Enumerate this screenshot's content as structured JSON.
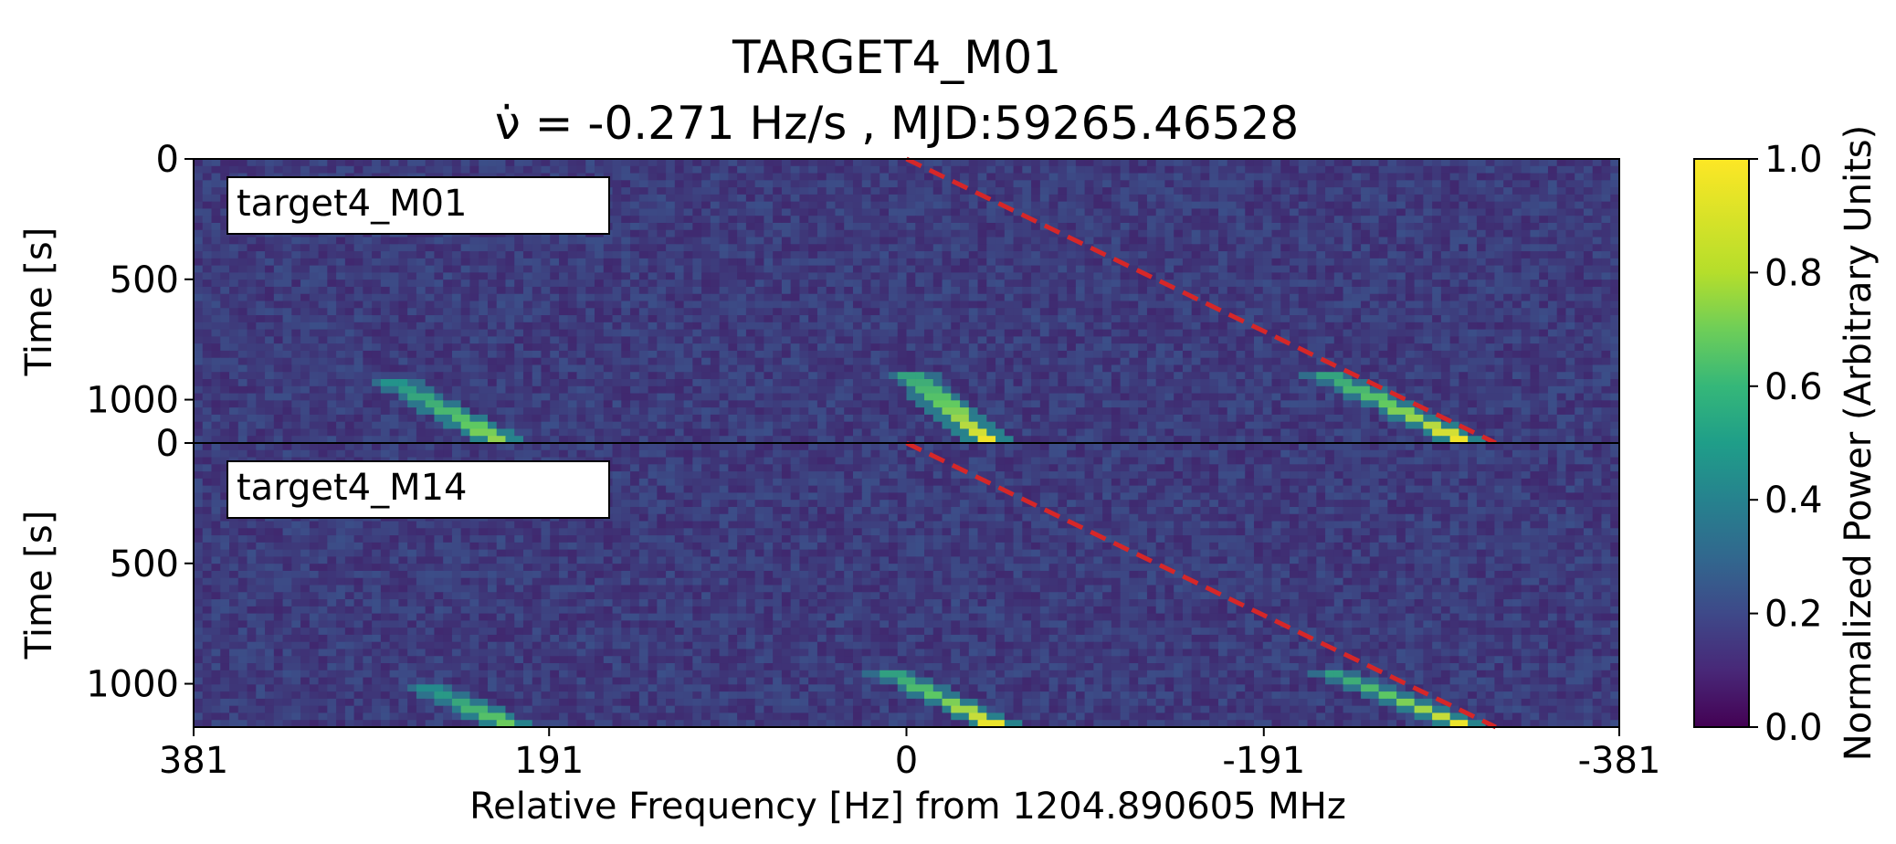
{
  "chart_data": {
    "type": "heatmap",
    "title": "TARGET4_M01",
    "subtitle": "ν̇ = -0.271 Hz/s , MJD:59265.46528",
    "xlabel": "Relative Frequency [Hz] from 1204.890605 MHz",
    "x_ticks": [
      "381",
      "191",
      "0",
      "-191",
      "-381"
    ],
    "x_tick_values": [
      381,
      191,
      0,
      -191,
      -381
    ],
    "xlim": [
      381,
      -381
    ],
    "colorbar": {
      "label": "Normalized Power (Arbitrary Units)",
      "ticks": [
        "0.0",
        "0.2",
        "0.4",
        "0.6",
        "0.8",
        "1.0"
      ],
      "range": [
        0.0,
        1.0
      ],
      "colormap": "viridis"
    },
    "drift_rate_hz_per_s": -0.271,
    "panels": [
      {
        "name": "target4_M01",
        "ylabel": "Time [s]",
        "y_ticks": [
          "0",
          "500",
          "1000"
        ],
        "y_tick_values": [
          0,
          500,
          1000
        ],
        "ylim": [
          0,
          1180
        ],
        "drift_line": {
          "x_start": 0,
          "x_end": -315,
          "t_start": 0,
          "t_end": 1180
        },
        "signals": [
          {
            "x_start": 0,
            "x_end": -45,
            "t_start": 880,
            "t_end": 1180,
            "peak": 1.0
          },
          {
            "x_start": -220,
            "x_end": -300,
            "t_start": 880,
            "t_end": 1180,
            "peak": 1.0
          },
          {
            "x_start": 280,
            "x_end": 215,
            "t_start": 900,
            "t_end": 1180,
            "peak": 0.85
          }
        ]
      },
      {
        "name": "target4_M14",
        "ylabel": "Time [s]",
        "y_ticks": [
          "500",
          "1000"
        ],
        "y_tick_values": [
          500,
          1000
        ],
        "ylim": [
          0,
          1180
        ],
        "drift_line": {
          "x_start": 0,
          "x_end": -315,
          "t_start": 0,
          "t_end": 1180
        },
        "signals": [
          {
            "x_start": 10,
            "x_end": -50,
            "t_start": 950,
            "t_end": 1180,
            "peak": 1.0
          },
          {
            "x_start": -225,
            "x_end": -300,
            "t_start": 950,
            "t_end": 1180,
            "peak": 1.0
          },
          {
            "x_start": 260,
            "x_end": 210,
            "t_start": 1000,
            "t_end": 1180,
            "peak": 0.8
          }
        ]
      }
    ]
  },
  "colors": {
    "drift_line": "#d62728",
    "background_low": "#3b2a77",
    "frame": "#000000"
  }
}
